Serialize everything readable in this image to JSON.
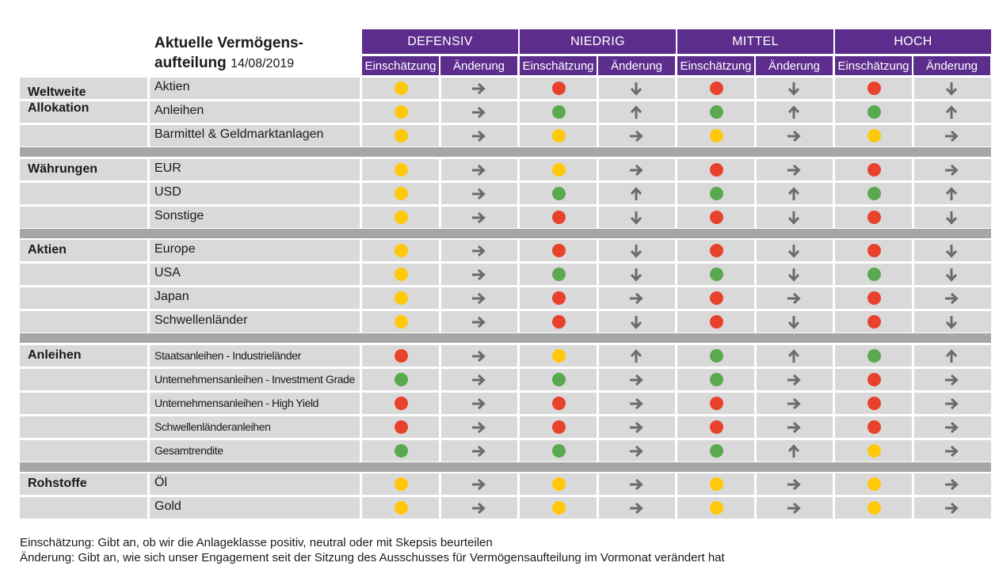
{
  "title": {
    "line1": "Aktuelle Vermögens-",
    "line2": "aufteilung",
    "date": "14/08/2019"
  },
  "profiles": [
    "DEFENSIV",
    "NIEDRIG",
    "MITTEL",
    "HOCH"
  ],
  "subheaders": {
    "assessment": "Einschätzung",
    "change": "Änderung"
  },
  "colors": {
    "header": "#5c2d8c",
    "row": "#d9d9d9",
    "gap": "#a6a6a6",
    "green": "#5aa84f",
    "yellow": "#ffc80a",
    "red": "#e8412c",
    "arrow": "#6b6b6b"
  },
  "sections": [
    {
      "name": "Weltweite Allokation",
      "rows": [
        {
          "label": "Aktien",
          "cells": [
            [
              "yellow",
              "right"
            ],
            [
              "red",
              "down"
            ],
            [
              "red",
              "down"
            ],
            [
              "red",
              "down"
            ]
          ]
        },
        {
          "label": "Anleihen",
          "cells": [
            [
              "yellow",
              "right"
            ],
            [
              "green",
              "up"
            ],
            [
              "green",
              "up"
            ],
            [
              "green",
              "up"
            ]
          ]
        },
        {
          "label": "Barmittel & Geldmarktanlagen",
          "cells": [
            [
              "yellow",
              "right"
            ],
            [
              "yellow",
              "right"
            ],
            [
              "yellow",
              "right"
            ],
            [
              "yellow",
              "right"
            ]
          ]
        }
      ]
    },
    {
      "name": "Währungen",
      "rows": [
        {
          "label": "EUR",
          "cells": [
            [
              "yellow",
              "right"
            ],
            [
              "yellow",
              "right"
            ],
            [
              "red",
              "right"
            ],
            [
              "red",
              "right"
            ]
          ]
        },
        {
          "label": "USD",
          "cells": [
            [
              "yellow",
              "right"
            ],
            [
              "green",
              "up"
            ],
            [
              "green",
              "up"
            ],
            [
              "green",
              "up"
            ]
          ]
        },
        {
          "label": "Sonstige",
          "cells": [
            [
              "yellow",
              "right"
            ],
            [
              "red",
              "down"
            ],
            [
              "red",
              "down"
            ],
            [
              "red",
              "down"
            ]
          ]
        }
      ]
    },
    {
      "name": "Aktien",
      "rows": [
        {
          "label": "Europe",
          "cells": [
            [
              "yellow",
              "right"
            ],
            [
              "red",
              "down"
            ],
            [
              "red",
              "down"
            ],
            [
              "red",
              "down"
            ]
          ]
        },
        {
          "label": "USA",
          "cells": [
            [
              "yellow",
              "right"
            ],
            [
              "green",
              "down"
            ],
            [
              "green",
              "down"
            ],
            [
              "green",
              "down"
            ]
          ]
        },
        {
          "label": "Japan",
          "cells": [
            [
              "yellow",
              "right"
            ],
            [
              "red",
              "right"
            ],
            [
              "red",
              "right"
            ],
            [
              "red",
              "right"
            ]
          ]
        },
        {
          "label": "Schwellenländer",
          "cells": [
            [
              "yellow",
              "right"
            ],
            [
              "red",
              "down"
            ],
            [
              "red",
              "down"
            ],
            [
              "red",
              "down"
            ]
          ]
        }
      ]
    },
    {
      "name": "Anleihen",
      "rows": [
        {
          "label": "Staatsanleihen - Industrieländer",
          "cells": [
            [
              "red",
              "right"
            ],
            [
              "yellow",
              "up"
            ],
            [
              "green",
              "up"
            ],
            [
              "green",
              "up"
            ]
          ]
        },
        {
          "label": "Unternehmensanleihen - Investment Grade",
          "cells": [
            [
              "green",
              "right"
            ],
            [
              "green",
              "right"
            ],
            [
              "green",
              "right"
            ],
            [
              "red",
              "right"
            ]
          ]
        },
        {
          "label": "Unternehmensanleihen - High Yield",
          "cells": [
            [
              "red",
              "right"
            ],
            [
              "red",
              "right"
            ],
            [
              "red",
              "right"
            ],
            [
              "red",
              "right"
            ]
          ]
        },
        {
          "label": "Schwellenländeranleihen",
          "cells": [
            [
              "red",
              "right"
            ],
            [
              "red",
              "right"
            ],
            [
              "red",
              "right"
            ],
            [
              "red",
              "right"
            ]
          ]
        },
        {
          "label": "Gesamtrendite",
          "cells": [
            [
              "green",
              "right"
            ],
            [
              "green",
              "right"
            ],
            [
              "green",
              "up"
            ],
            [
              "yellow",
              "right"
            ]
          ]
        }
      ]
    },
    {
      "name": "Rohstoffe",
      "rows": [
        {
          "label": "Öl",
          "cells": [
            [
              "yellow",
              "right"
            ],
            [
              "yellow",
              "right"
            ],
            [
              "yellow",
              "right"
            ],
            [
              "yellow",
              "right"
            ]
          ]
        },
        {
          "label": "Gold",
          "cells": [
            [
              "yellow",
              "right"
            ],
            [
              "yellow",
              "right"
            ],
            [
              "yellow",
              "right"
            ],
            [
              "yellow",
              "right"
            ]
          ]
        }
      ]
    }
  ],
  "footnotes": [
    "Einschätzung: Gibt an, ob wir die Anlageklasse positiv, neutral oder mit Skepsis beurteilen",
    "Änderung: Gibt an, wie sich unser Engagement seit der Sitzung des Ausschusses für Vermögensaufteilung im Vormonat verändert hat"
  ]
}
